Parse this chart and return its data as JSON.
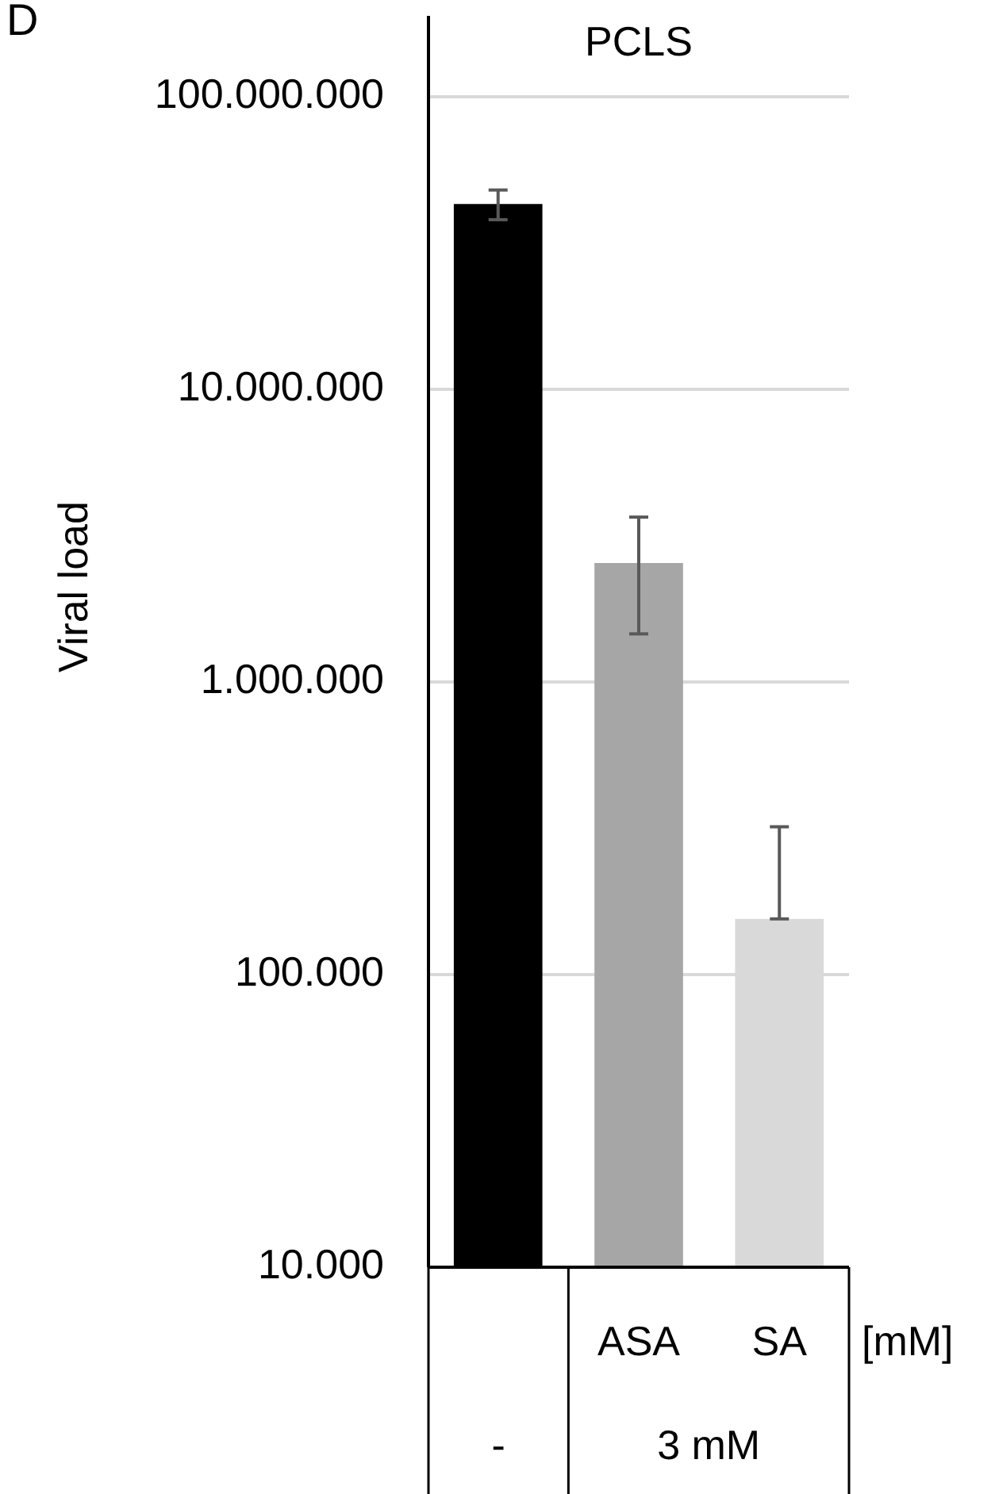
{
  "chart_data": {
    "type": "bar",
    "title": "PCLS",
    "ylabel": "Viral load",
    "categories": [
      null,
      "ASA",
      "SA"
    ],
    "values": [
      43000000,
      2550000,
      155000
    ],
    "colors": [
      "#000000",
      "#a6a6a6",
      "#d9d9d9"
    ],
    "errors": [
      [
        38000000,
        48000000
      ],
      [
        1460000,
        3660000
      ],
      [
        155000,
        320000
      ]
    ],
    "log": true,
    "ylim": [
      10000,
      100000000
    ],
    "yticks": [
      {
        "value": 10000,
        "label": "10.000"
      },
      {
        "value": 100000,
        "label": "100.000"
      },
      {
        "value": 1000000,
        "label": "1.000.000"
      },
      {
        "value": 10000000,
        "label": "10.000.000"
      },
      {
        "value": 100000000,
        "label": "100.000.000"
      }
    ],
    "grid": "y",
    "annotations": [
      "D",
      "-",
      "3 mM",
      "[mM]"
    ]
  }
}
